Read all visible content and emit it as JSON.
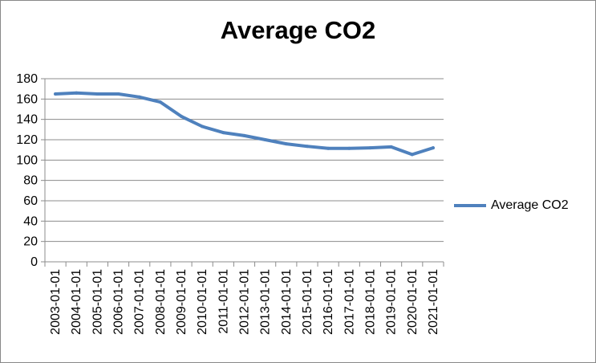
{
  "chart_data": {
    "type": "line",
    "title": "Average CO2",
    "xlabel": "",
    "ylabel": "",
    "ylim": [
      0,
      180
    ],
    "yticks": [
      0,
      20,
      40,
      60,
      80,
      100,
      120,
      140,
      160,
      180
    ],
    "grid": "horizontal",
    "legend_position": "right",
    "x": [
      "2003-01-01",
      "2004-01-01",
      "2005-01-01",
      "2006-01-01",
      "2007-01-01",
      "2008-01-01",
      "2009-01-01",
      "2010-01-01",
      "2011-01-01",
      "2012-01-01",
      "2013-01-01",
      "2014-01-01",
      "2015-01-01",
      "2016-01-01",
      "2017-01-01",
      "2018-01-01",
      "2019-01-01",
      "2020-01-01",
      "2021-01-01"
    ],
    "series": [
      {
        "name": "Average CO2",
        "color": "#4f81bd",
        "values": [
          165,
          166,
          165,
          165,
          162,
          157,
          143,
          133,
          127,
          124,
          120,
          116,
          113.5,
          111.5,
          111.5,
          112,
          113,
          105.5,
          112
        ]
      }
    ]
  }
}
